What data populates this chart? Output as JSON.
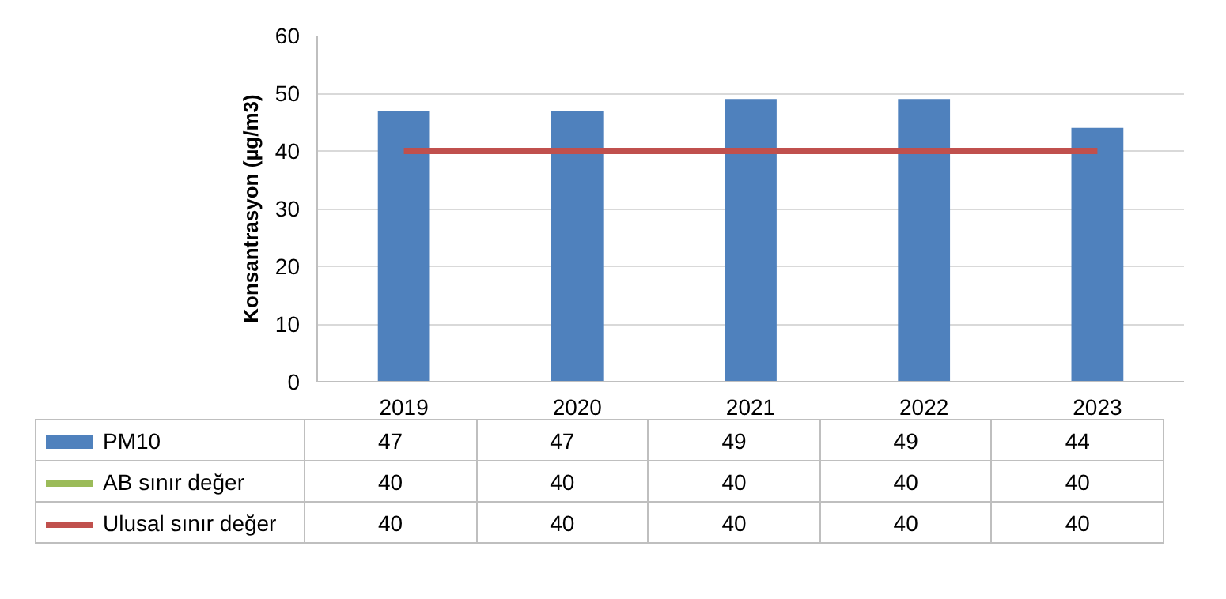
{
  "chart_data": {
    "type": "bar",
    "ylabel": "Konsantrasyon (µg/m3)",
    "categories": [
      "2019",
      "2020",
      "2021",
      "2022",
      "2023"
    ],
    "series": [
      {
        "name": "PM10",
        "color": "#4f81bd",
        "values": [
          47,
          47,
          49,
          49,
          44
        ],
        "value_labels": [
          "47",
          "47",
          "49",
          "49",
          "44"
        ]
      },
      {
        "name": "AB sınır değer",
        "type": "line",
        "color": "#9bbb59",
        "values": [
          null,
          null,
          null,
          null,
          null
        ],
        "value_labels": [
          "40",
          "40",
          "40",
          "40",
          "40"
        ]
      },
      {
        "name": "Ulusal sınır değer",
        "type": "line",
        "color": "#c0504d",
        "values": [
          40,
          40,
          40,
          40,
          40
        ],
        "value_labels": [
          "40",
          "40",
          "40",
          "40",
          "40"
        ]
      }
    ],
    "ylim": [
      0,
      60
    ],
    "yticks": [
      0,
      10,
      20,
      30,
      40,
      50,
      60
    ],
    "grid": "y",
    "legend": "bottom"
  }
}
